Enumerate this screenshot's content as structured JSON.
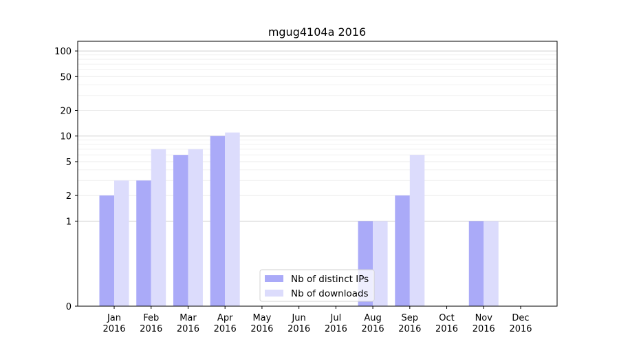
{
  "chart_data": {
    "type": "bar",
    "title": "mgug4104a 2016",
    "xlabel": "",
    "ylabel": "",
    "yscale": "symlog",
    "ylim": [
      0,
      130
    ],
    "yticks": [
      0,
      1,
      2,
      5,
      10,
      20,
      50,
      100
    ],
    "grid": true,
    "legend_position": "bottom-center",
    "categories": [
      "Jan\n2016",
      "Feb\n2016",
      "Mar\n2016",
      "Apr\n2016",
      "May\n2016",
      "Jun\n2016",
      "Jul\n2016",
      "Aug\n2016",
      "Sep\n2016",
      "Oct\n2016",
      "Nov\n2016",
      "Dec\n2016"
    ],
    "series": [
      {
        "name": "Nb of distinct IPs",
        "color": "#aaaaf8",
        "values": [
          2,
          3,
          6,
          10,
          0,
          0,
          0,
          1,
          2,
          0,
          1,
          0
        ]
      },
      {
        "name": "Nb of downloads",
        "color": "#dcdcfc",
        "values": [
          3,
          7,
          7,
          11,
          0,
          0,
          0,
          1,
          6,
          0,
          1,
          0
        ]
      }
    ]
  }
}
